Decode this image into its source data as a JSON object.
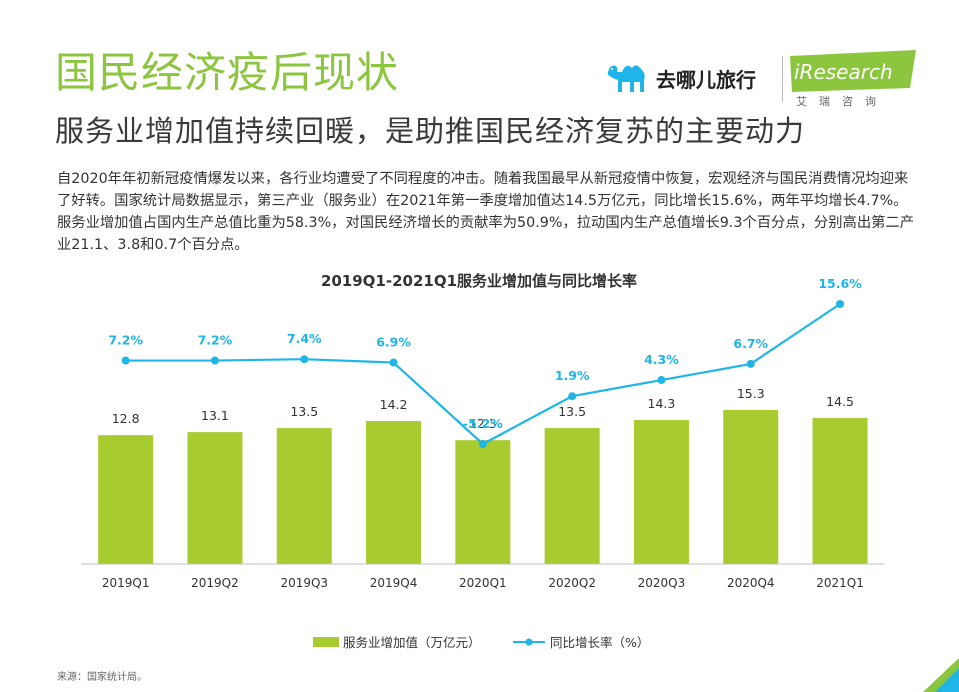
{
  "header": {
    "title": "国民经济疫后现状",
    "subtitle": "服务业增加值持续回暖，是助推国民经济复苏的主要动力"
  },
  "logos": {
    "qunar_name": "去哪儿旅行",
    "iresearch_name": "iResearch",
    "iresearch_cn": "艾瑞咨询",
    "brand_green": "#8cc63f",
    "brand_cyan": "#1fb5e8"
  },
  "intro_text": "自2020年年初新冠疫情爆发以来，各行业均遭受了不同程度的冲击。随着我国最早从新冠疫情中恢复，宏观经济与国民消费情况均迎来了好转。国家统计局数据显示，第三产业（服务业）在2021年第一季度增加值达14.5万亿元，同比增长15.6%，两年平均增长4.7%。服务业增加值占国内生产总值比重为58.3%，对国民经济增长的贡献率为50.9%，拉动国内生产总值增长9.3个百分点，分别高出第二产业21.1、3.8和0.7个百分点。",
  "source": "来源：国家统计局。",
  "chart_data": {
    "type": "bar",
    "title": "2019Q1-2021Q1服务业增加值与同比增长率",
    "categories": [
      "2019Q1",
      "2019Q2",
      "2019Q3",
      "2019Q4",
      "2020Q1",
      "2020Q2",
      "2020Q3",
      "2020Q4",
      "2021Q1"
    ],
    "series": [
      {
        "name": "服务业增加值（万亿元）",
        "type": "bar",
        "color": "#a8cb2f",
        "values": [
          12.8,
          13.1,
          13.5,
          14.2,
          12.3,
          13.5,
          14.3,
          15.3,
          14.5
        ],
        "labels": [
          "12.8",
          "13.1",
          "13.5",
          "14.2",
          "12.3",
          "13.5",
          "14.3",
          "15.3",
          "14.5"
        ]
      },
      {
        "name": "同比增长率（%）",
        "type": "line",
        "color": "#1fb5e8",
        "values": [
          7.2,
          7.2,
          7.4,
          6.9,
          -5.2,
          1.9,
          4.3,
          6.7,
          15.6
        ],
        "labels": [
          "7.2%",
          "7.2%",
          "7.4%",
          "6.9%",
          "-5.2%",
          "1.9%",
          "4.3%",
          "6.7%",
          "15.6%"
        ]
      }
    ],
    "bar_ylim": [
      0,
      30
    ],
    "line_ylim": [
      -15,
      20
    ],
    "grid": false,
    "legend_position": "bottom"
  }
}
